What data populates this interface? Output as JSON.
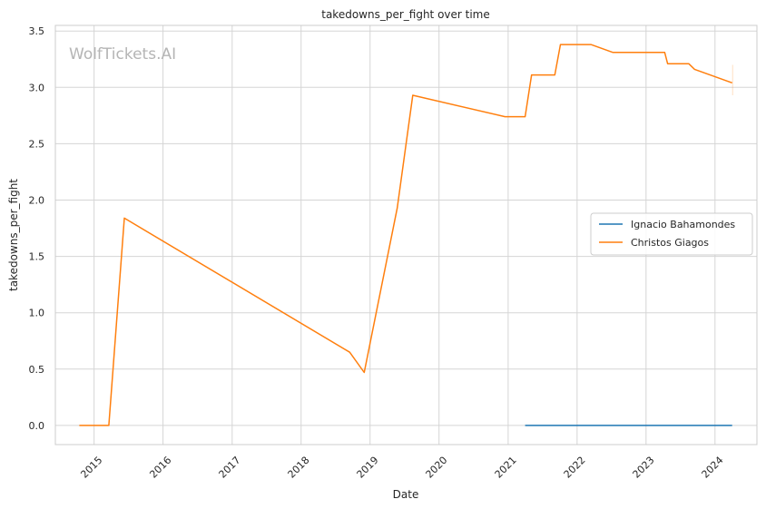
{
  "watermark": "WolfTickets.AI",
  "chart_data": {
    "type": "line",
    "title": "takedowns_per_fight over time",
    "xlabel": "Date",
    "ylabel": "takedowns_per_fight",
    "xlim": [
      "2014-06-10",
      "2024-08-10"
    ],
    "ylim": [
      -0.17,
      3.55
    ],
    "x_ticks": [
      "2015-01-01",
      "2016-01-01",
      "2017-01-01",
      "2018-01-01",
      "2019-01-01",
      "2020-01-01",
      "2021-01-01",
      "2022-01-01",
      "2023-01-01",
      "2024-01-01"
    ],
    "x_tick_labels": [
      "2015",
      "2016",
      "2017",
      "2018",
      "2019",
      "2020",
      "2021",
      "2022",
      "2023",
      "2024"
    ],
    "y_ticks": [
      0.0,
      0.5,
      1.0,
      1.5,
      2.0,
      2.5,
      3.0,
      3.5
    ],
    "y_tick_labels": [
      "0.0",
      "0.5",
      "1.0",
      "1.5",
      "2.0",
      "2.5",
      "3.0",
      "3.5"
    ],
    "grid": true,
    "legend_position": "center-right",
    "series": [
      {
        "name": "Ignacio Bahamondes",
        "color": "#1f77b4",
        "points": [
          [
            "2021-04-01",
            0.0
          ],
          [
            "2024-04-01",
            0.0
          ]
        ]
      },
      {
        "name": "Christos Giagos",
        "color": "#ff7f0e",
        "points": [
          [
            "2014-10-15",
            0.0
          ],
          [
            "2015-03-20",
            0.0
          ],
          [
            "2015-06-10",
            1.84
          ],
          [
            "2018-09-15",
            0.65
          ],
          [
            "2018-12-01",
            0.47
          ],
          [
            "2019-05-25",
            1.93
          ],
          [
            "2019-08-15",
            2.93
          ],
          [
            "2020-12-15",
            2.74
          ],
          [
            "2021-04-01",
            2.74
          ],
          [
            "2021-05-05",
            3.11
          ],
          [
            "2021-09-05",
            3.11
          ],
          [
            "2021-10-05",
            3.38
          ],
          [
            "2022-03-15",
            3.38
          ],
          [
            "2022-07-10",
            3.31
          ],
          [
            "2023-04-10",
            3.31
          ],
          [
            "2023-04-25",
            3.21
          ],
          [
            "2023-08-15",
            3.21
          ],
          [
            "2023-09-15",
            3.16
          ],
          [
            "2024-04-01",
            3.04
          ]
        ]
      }
    ]
  }
}
